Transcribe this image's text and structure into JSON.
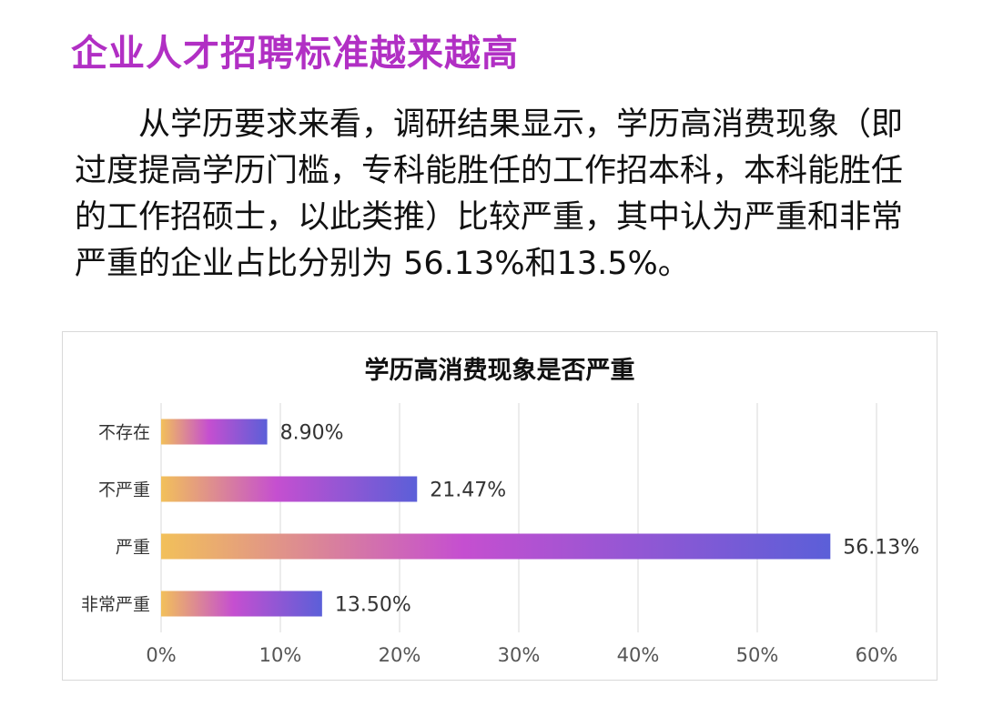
{
  "header": {
    "title": "企业人才招聘标准越来越高"
  },
  "content": {
    "paragraph": "从学历要求来看，调研结果显示，学历高消费现象（即过度提高学历门槛，专科能胜任的工作招本科，本科能胜任的工作招硕士，以此类推）比较严重，其中认为严重和非常严重的企业占比分别为 56.13%和13.5%。"
  },
  "colors": {
    "title": "#b12fc4",
    "bar_start": "#f2c05a",
    "bar_mid": "#c54fd0",
    "bar_end": "#5b5fd8",
    "grid": "#e6e6e6"
  },
  "chart_data": {
    "type": "bar",
    "orientation": "horizontal",
    "title": "学历高消费现象是否严重",
    "categories": [
      "不存在",
      "不严重",
      "严重",
      "非常严重"
    ],
    "values": [
      8.9,
      21.47,
      56.13,
      13.5
    ],
    "value_labels": [
      "8.90%",
      "21.47%",
      "56.13%",
      "13.50%"
    ],
    "xlim": [
      0,
      60
    ],
    "xticks": [
      "0%",
      "10%",
      "20%",
      "30%",
      "40%",
      "50%",
      "60%"
    ],
    "xtick_values": [
      0,
      10,
      20,
      30,
      40,
      50,
      60
    ],
    "grid": true,
    "legend": "none"
  }
}
